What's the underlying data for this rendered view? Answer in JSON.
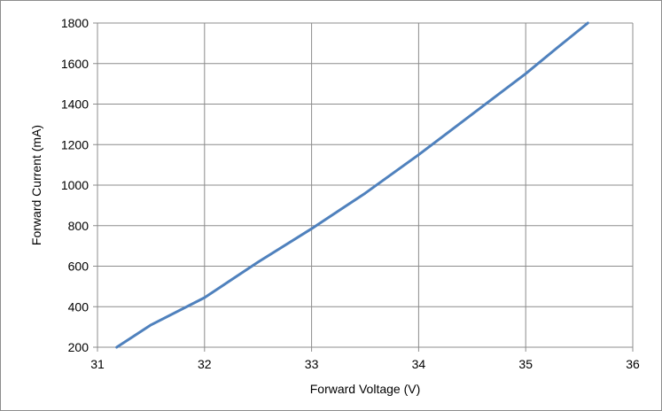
{
  "chart_data": {
    "type": "line",
    "title": "",
    "xlabel": "Forward Voltage (V)",
    "ylabel": "Forward Current (mA)",
    "xlim": [
      31,
      36
    ],
    "ylim": [
      200,
      1800
    ],
    "x_ticks": [
      "31",
      "32",
      "33",
      "34",
      "35",
      "36"
    ],
    "y_ticks": [
      "200",
      "400",
      "600",
      "800",
      "1000",
      "1200",
      "1400",
      "1600",
      "1800"
    ],
    "grid": true,
    "legend": "none",
    "series": [
      {
        "color": "#4f81bd",
        "x": [
          31.18,
          31.5,
          32.0,
          32.5,
          33.0,
          33.5,
          34.0,
          34.5,
          35.0,
          35.3,
          35.58
        ],
        "y": [
          200,
          310,
          445,
          620,
          785,
          960,
          1150,
          1350,
          1550,
          1680,
          1800
        ]
      }
    ]
  }
}
